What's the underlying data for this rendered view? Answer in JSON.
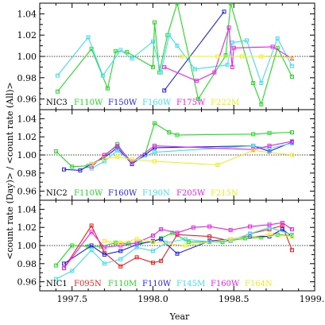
{
  "chart_data": {
    "type": "line",
    "xlabel": "Year",
    "ylabel": "<count rate (Day)> / <count rate (All)>",
    "xlim": [
      1997.3,
      1999.0
    ],
    "xticks": [
      1997.5,
      1998.0,
      1998.5,
      1999.0
    ],
    "xtick_labels": [
      "1997.5",
      "1998.0",
      "1998.5",
      "1999.0"
    ],
    "ylim": [
      0.95,
      1.05
    ],
    "yticks": [
      0.96,
      0.98,
      1.0,
      1.02,
      1.04
    ],
    "ytick_labels": [
      "0.96",
      "0.98",
      "1.00",
      "1.02",
      "1.04"
    ],
    "reference_line": 1.0,
    "panels": [
      {
        "label": "NIC3",
        "legend": [
          {
            "name": "F110W",
            "color": "#22dd22"
          },
          {
            "name": "F150W",
            "color": "#2222ee"
          },
          {
            "name": "F160W",
            "color": "#44ddee"
          },
          {
            "name": "F175W",
            "color": "#ee22ee"
          },
          {
            "name": "F222M",
            "color": "#eeee22"
          }
        ],
        "series": [
          {
            "name": "F110W",
            "color": "#22dd22",
            "x": [
              1997.41,
              1997.62,
              1997.72,
              1997.77,
              1997.84,
              1998.0,
              1998.01,
              1998.04,
              1998.09,
              1998.15,
              1998.28,
              1998.45,
              1998.48,
              1998.62,
              1998.67,
              1998.77,
              1998.86
            ],
            "y": [
              0.967,
              1.007,
              0.97,
              1.005,
              1.004,
              0.99,
              1.032,
              0.985,
              1.02,
              1.05,
              0.96,
              1.001,
              1.05,
              0.975,
              0.955,
              1.008,
              0.981
            ]
          },
          {
            "name": "F160W",
            "color": "#44ddee",
            "x": [
              1997.41,
              1997.6,
              1997.69,
              1997.8,
              1997.87,
              1998.0,
              1998.05,
              1998.1,
              1998.15,
              1998.26,
              1998.46,
              1998.49,
              1998.58,
              1998.67,
              1998.77,
              1998.86
            ],
            "y": [
              0.982,
              1.018,
              0.982,
              1.006,
              0.998,
              1.014,
              0.985,
              1.02,
              1.01,
              0.988,
              0.992,
              1.013,
              1.015,
              0.975,
              1.017,
              0.991
            ]
          },
          {
            "name": "F150W",
            "color": "#2222ee",
            "x": [
              1998.07,
              1998.44
            ],
            "y": [
              0.968,
              1.042
            ]
          },
          {
            "name": "F175W",
            "color": "#ee22ee",
            "x": [
              1998.07,
              1998.27,
              1998.38,
              1998.47,
              1998.49,
              1998.5,
              1998.74,
              1998.86
            ],
            "y": [
              0.99,
              0.977,
              0.985,
              1.027,
              0.99,
              1.008,
              1.009,
              0.998
            ]
          },
          {
            "name": "F222M",
            "color": "#eeee22",
            "x": [
              1998.18,
              1998.4,
              1998.55,
              1998.67,
              1998.86
            ],
            "y": [
              1.0,
              1.0,
              1.0,
              1.0,
              0.999
            ]
          }
        ]
      },
      {
        "label": "NIC2",
        "legend": [
          {
            "name": "F110W",
            "color": "#22dd22"
          },
          {
            "name": "F160W",
            "color": "#2222ee"
          },
          {
            "name": "F190N",
            "color": "#44ddee"
          },
          {
            "name": "F205W",
            "color": "#ee22ee"
          },
          {
            "name": "F215N",
            "color": "#eeee22"
          }
        ],
        "series": [
          {
            "name": "F110W",
            "color": "#22dd22",
            "x": [
              1997.4,
              1997.5,
              1997.6,
              1997.7,
              1997.78,
              1997.87,
              1997.95,
              1998.01,
              1998.1,
              1998.15,
              1998.62,
              1998.72,
              1998.86
            ],
            "y": [
              1.004,
              0.987,
              0.988,
              0.998,
              1.012,
              0.99,
              1.0,
              1.035,
              1.025,
              1.022,
              1.023,
              1.024,
              1.025
            ]
          },
          {
            "name": "F160W",
            "color": "#2222ee",
            "x": [
              1997.45,
              1997.55,
              1997.62,
              1997.7,
              1997.78,
              1997.87,
              1997.95,
              1998.01,
              1998.62,
              1998.72,
              1998.86
            ],
            "y": [
              0.984,
              0.983,
              0.99,
              0.997,
              1.008,
              0.99,
              1.0,
              1.008,
              1.01,
              1.004,
              1.014
            ]
          },
          {
            "name": "F190N",
            "color": "#44ddee",
            "x": [
              1997.62,
              1997.7,
              1997.78,
              1997.87,
              1998.01,
              1998.62,
              1998.72,
              1998.86
            ],
            "y": [
              0.985,
              0.993,
              1.005,
              0.992,
              1.003,
              1.01,
              1.007,
              1.013
            ]
          },
          {
            "name": "F205W",
            "color": "#ee22ee",
            "x": [
              1997.62,
              1997.7,
              1997.78,
              1997.87,
              1998.01,
              1998.62,
              1998.72,
              1998.86
            ],
            "y": [
              0.987,
              1.0,
              1.01,
              0.992,
              1.01,
              1.006,
              1.01,
              1.015
            ]
          },
          {
            "name": "F215N",
            "color": "#eeee22",
            "x": [
              1997.62,
              1997.7,
              1997.78,
              1997.87,
              1998.01,
              1998.4,
              1998.62,
              1998.86
            ],
            "y": [
              0.99,
              0.996,
              0.998,
              0.995,
              0.993,
              0.989,
              1.005,
              1.0
            ]
          }
        ]
      },
      {
        "label": "NIC1",
        "legend": [
          {
            "name": "F095N",
            "color": "#ee2222"
          },
          {
            "name": "F110M",
            "color": "#22dd22"
          },
          {
            "name": "F110W",
            "color": "#2222ee"
          },
          {
            "name": "F145M",
            "color": "#44ddee"
          },
          {
            "name": "F160W",
            "color": "#ee22ee"
          },
          {
            "name": "F164N",
            "color": "#eeee22"
          }
        ],
        "series": [
          {
            "name": "F110M",
            "color": "#22dd22",
            "x": [
              1997.4,
              1997.5,
              1997.6,
              1997.68,
              1997.77,
              1997.85,
              1997.92,
              1998.0,
              1998.05,
              1998.12,
              1998.22,
              1998.35,
              1998.43,
              1998.57,
              1998.67,
              1998.77,
              1998.86
            ],
            "y": [
              0.978,
              1.0,
              0.999,
              0.999,
              1.003,
              1.002,
              1.003,
              1.004,
              1.008,
              1.014,
              1.004,
              1.004,
              1.004,
              1.008,
              1.009,
              1.012,
              1.011
            ]
          },
          {
            "name": "F095N",
            "color": "#ee2222",
            "x": [
              1997.45,
              1997.62,
              1997.7,
              1997.8,
              1997.9,
              1998.0,
              1998.05,
              1998.15,
              1998.35,
              1998.48,
              1998.6,
              1998.72,
              1998.8,
              1998.86
            ],
            "y": [
              0.975,
              1.022,
              0.992,
              0.977,
              0.987,
              0.981,
              0.983,
              1.012,
              1.01,
              1.005,
              1.013,
              1.018,
              1.022,
              0.995
            ]
          },
          {
            "name": "F110W",
            "color": "#2222ee",
            "x": [
              1997.45,
              1997.62,
              1997.7,
              1997.8,
              1997.9,
              1998.0,
              1998.05,
              1998.15,
              1998.35,
              1998.48,
              1998.6,
              1998.72,
              1998.8,
              1998.86
            ],
            "y": [
              0.98,
              1.0,
              0.99,
              0.994,
              1.001,
              1.005,
              1.007,
              0.991,
              1.005,
              1.007,
              1.01,
              1.01,
              1.018,
              1.01
            ]
          },
          {
            "name": "F145M",
            "color": "#44ddee",
            "x": [
              1997.4,
              1997.5,
              1997.62,
              1997.7,
              1997.8,
              1997.9,
              1998.0,
              1998.08,
              1998.2,
              1998.35,
              1998.48,
              1998.6,
              1998.72,
              1998.86
            ],
            "y": [
              0.963,
              0.972,
              0.995,
              0.98,
              0.985,
              0.998,
              0.994,
              1.003,
              1.007,
              1.004,
              1.005,
              1.013,
              1.02,
              1.012
            ]
          },
          {
            "name": "F160W",
            "color": "#ee22ee",
            "x": [
              1997.45,
              1997.62,
              1997.7,
              1997.8,
              1997.9,
              1998.0,
              1998.05,
              1998.15,
              1998.25,
              1998.35,
              1998.48,
              1998.6,
              1998.72,
              1998.8,
              1998.86
            ],
            "y": [
              0.975,
              1.015,
              0.998,
              1.0,
              1.003,
              1.011,
              1.018,
              1.014,
              1.02,
              1.021,
              1.017,
              1.021,
              1.023,
              1.025,
              1.018
            ]
          },
          {
            "name": "F164N",
            "color": "#eeee22",
            "x": [
              1997.7,
              1997.8,
              1997.9,
              1998.0,
              1998.2,
              1998.48,
              1998.72,
              1998.86
            ],
            "y": [
              1.005,
              1.003,
              1.007,
              1.004,
              1.0,
              1.007,
              1.012,
              1.01
            ]
          }
        ]
      }
    ]
  }
}
